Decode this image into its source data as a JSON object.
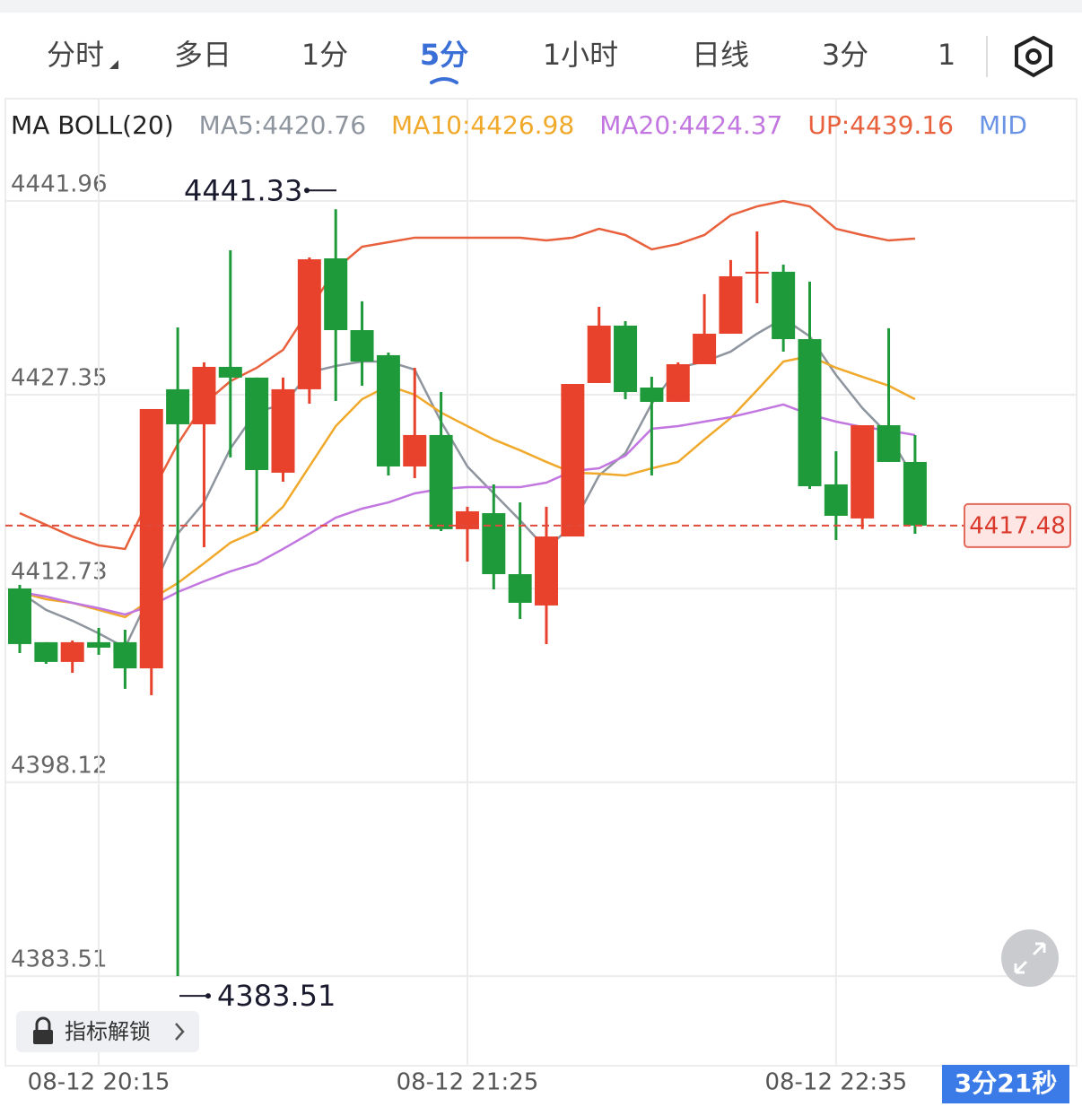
{
  "tabs": [
    "分时",
    "多日",
    "1分",
    "5分",
    "1小时",
    "日线",
    "3分",
    "1"
  ],
  "active_tab": 3,
  "unlock_button": "指标解锁",
  "countdown": "3分21秒",
  "chart_data": {
    "type": "candlestick",
    "indicator_label": "MA BOLL(20)",
    "categories": [
      null,
      null,
      null,
      "08-12 20:15",
      null,
      null,
      null,
      null,
      null,
      null,
      null,
      null,
      null,
      null,
      null,
      null,
      null,
      "08-12 21:25",
      null,
      null,
      null,
      null,
      null,
      null,
      null,
      null,
      null,
      null,
      null,
      null,
      null,
      "08-12 22:35",
      null,
      null,
      null
    ],
    "open": [
      4412.74,
      4408.69,
      4407.2,
      4408.69,
      4408.69,
      4406.72,
      4427.76,
      4425.12,
      4429.45,
      4428.64,
      4421.47,
      4427.76,
      4437.63,
      4432.22,
      4430.33,
      4421.94,
      4424.31,
      4417.21,
      4418.42,
      4413.82,
      4411.46,
      4416.66,
      4428.23,
      4432.56,
      4427.89,
      4426.81,
      4429.65,
      4431.95,
      4436.48,
      4436.62,
      4431.54,
      4420.59,
      4418.02,
      4425.05,
      4422.28
    ],
    "high": [
      4413.01,
      4408.69,
      4408.82,
      4409.77,
      4409.63,
      4426.27,
      4432.42,
      4429.79,
      4438.24,
      4428.64,
      4428.64,
      4437.7,
      4441.33,
      4434.39,
      4430.53,
      4429.38,
      4427.55,
      4418.9,
      4420.59,
      4419.23,
      4418.9,
      4428.16,
      4433.98,
      4432.9,
      4428.7,
      4429.79,
      4434.93,
      4437.5,
      4439.66,
      4437.16,
      4435.87,
      4423.09,
      4425.05,
      4432.36,
      4424.31
    ],
    "low": [
      4407.87,
      4407.06,
      4406.38,
      4407.74,
      4405.17,
      4404.69,
      4383.51,
      4415.85,
      4422.62,
      4417.07,
      4420.79,
      4426.67,
      4426.88,
      4428.03,
      4421.26,
      4421.06,
      4417.07,
      4414.77,
      4412.67,
      4410.44,
      4408.55,
      4416.66,
      4428.23,
      4427.01,
      4421.26,
      4426.81,
      4429.65,
      4431.95,
      4434.25,
      4430.6,
      4420.25,
      4416.39,
      4417.21,
      4422.28,
      4416.87
    ],
    "close": [
      4408.55,
      4407.2,
      4408.69,
      4408.28,
      4406.72,
      4426.27,
      4425.12,
      4429.45,
      4428.64,
      4421.67,
      4427.76,
      4437.56,
      4432.22,
      4429.85,
      4421.94,
      4424.31,
      4417.21,
      4418.56,
      4413.82,
      4411.66,
      4416.66,
      4428.16,
      4432.56,
      4427.55,
      4426.81,
      4429.65,
      4431.95,
      4436.28,
      4436.62,
      4431.54,
      4420.45,
      4418.22,
      4425.05,
      4422.28,
      4417.48
    ],
    "up_color": "#e8412c",
    "down_color": "#1e9a3a",
    "series": [
      {
        "name": "MA5:4420.76",
        "color": "#8e959e",
        "values": [
          4412.47,
          4411.12,
          4410.31,
          4409.36,
          4408.28,
          4412.47,
          4416.87,
          4419.23,
          4423.29,
          4426.13,
          4426.54,
          4429.04,
          4429.52,
          4429.85,
          4429.85,
          4429.24,
          4425.32,
          4421.94,
          4419.91,
          4417.88,
          4415.72,
          4417.54,
          4421.26,
          4422.95,
          4426.67,
          4429.38,
          4429.85,
          4430.6,
          4431.95,
          4433.1,
          4431.75,
          4428.84,
          4426.34,
          4424.31,
          4420.93
        ]
      },
      {
        "name": "MA10:4426.98",
        "color": "#f0a92b",
        "values": [
          4412.47,
          4411.93,
          4411.66,
          4411.12,
          4410.58,
          4411.93,
          4413.15,
          4414.64,
          4416.19,
          4417.07,
          4418.9,
          4421.94,
          4424.98,
          4427.01,
          4428.03,
          4427.35,
          4426.0,
          4424.98,
          4423.97,
          4423.16,
          4422.28,
          4421.47,
          4421.4,
          4421.26,
          4421.8,
          4422.28,
          4423.97,
          4425.59,
          4427.69,
          4429.85,
          4430.26,
          4429.38,
          4428.7,
          4428.03,
          4427.01
        ]
      },
      {
        "name": "MA20:4424.37",
        "color": "#c277e0",
        "values": [
          4412.47,
          4412.13,
          4411.66,
          4411.25,
          4410.78,
          4411.46,
          4412.47,
          4413.28,
          4414.03,
          4414.64,
          4415.72,
          4416.87,
          4418.08,
          4418.76,
          4419.23,
          4419.91,
          4420.25,
          4420.38,
          4420.38,
          4420.38,
          4420.72,
          4421.6,
          4421.8,
          4422.75,
          4424.78,
          4424.98,
          4425.32,
          4425.66,
          4426.13,
          4426.61,
          4425.86,
          4425.32,
          4424.92,
          4424.65,
          4424.31
        ]
      },
      {
        "name": "UP:4439.16",
        "color": "#e8603c",
        "values": [
          4418.42,
          4417.54,
          4416.66,
          4415.99,
          4415.72,
          4419.91,
          4423.63,
          4426.67,
          4428.37,
          4429.38,
          4430.73,
          4433.78,
          4436.82,
          4438.51,
          4438.85,
          4439.19,
          4439.19,
          4439.19,
          4439.19,
          4439.19,
          4438.98,
          4439.19,
          4439.86,
          4439.39,
          4438.31,
          4438.71,
          4439.39,
          4440.88,
          4441.55,
          4441.96,
          4441.55,
          4439.86,
          4439.39,
          4438.98,
          4439.12
        ]
      }
    ],
    "legend_overflow": {
      "name": "MID",
      "color": "#6a93e6"
    },
    "ylim": [
      4376.96,
      4445.95
    ],
    "yticks": [
      4441.96,
      4427.35,
      4412.73,
      4398.12,
      4383.51
    ],
    "grid": true
  }
}
